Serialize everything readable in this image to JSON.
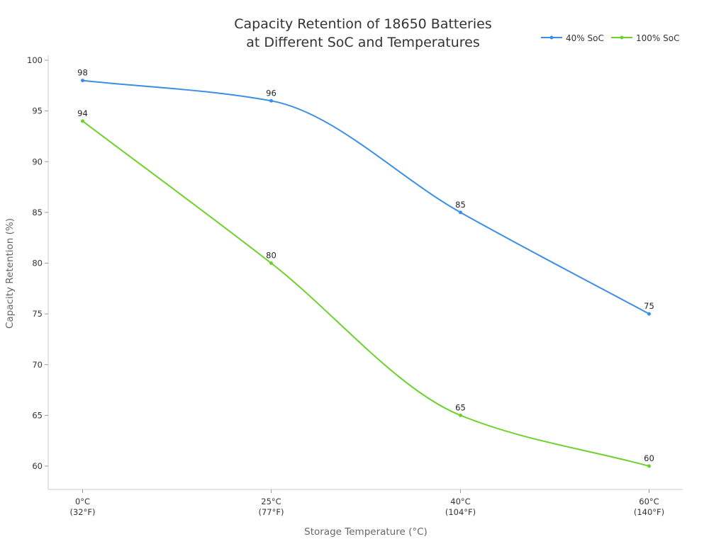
{
  "chart_data": {
    "type": "line",
    "title": [
      "Capacity Retention of 18650 Batteries",
      "at Different SoC and Temperatures"
    ],
    "xlabel": "Storage Temperature (°C)",
    "ylabel": "Capacity Retention (%)",
    "categories": [
      [
        "0°C",
        "(32°F)"
      ],
      [
        "25°C",
        "(77°F)"
      ],
      [
        "40°C",
        "(104°F)"
      ],
      [
        "60°C",
        "(140°F)"
      ]
    ],
    "ylim": [
      58,
      100
    ],
    "yticks": [
      60,
      65,
      70,
      75,
      80,
      85,
      90,
      95,
      100
    ],
    "grid": false,
    "legend_position": "top-right",
    "series": [
      {
        "name": "40% SoC",
        "color": "#3a8ee6",
        "values": [
          98,
          96,
          85,
          75
        ]
      },
      {
        "name": "100% SoC",
        "color": "#6dd12b",
        "values": [
          94,
          80,
          65,
          60
        ]
      }
    ]
  }
}
